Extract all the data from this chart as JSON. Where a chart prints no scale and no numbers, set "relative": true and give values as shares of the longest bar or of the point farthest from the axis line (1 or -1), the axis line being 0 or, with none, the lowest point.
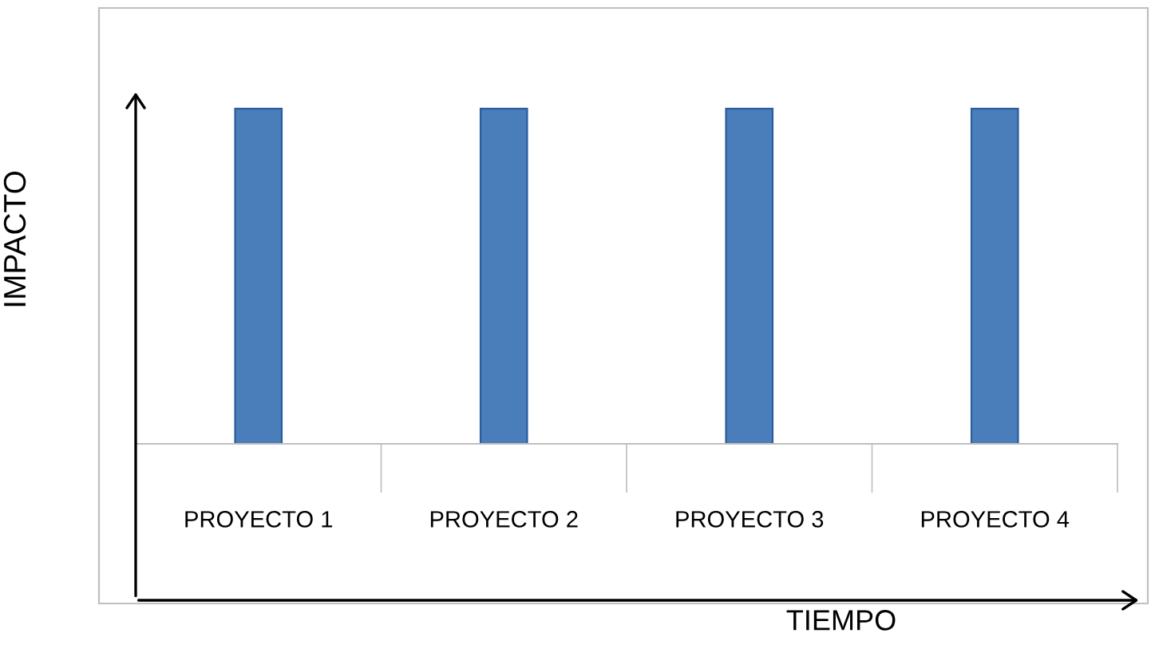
{
  "chart_data": {
    "type": "bar",
    "relative": true,
    "xlabel": "TIEMPO",
    "ylabel": "IMPACTO",
    "categories": [
      "PROYECTO 1",
      "PROYECTO 2",
      "PROYECTO 3",
      "PROYECTO 4"
    ],
    "values": [
      1,
      1,
      1,
      1
    ],
    "color": "#4a7ebb",
    "grid": false,
    "legend": false
  }
}
